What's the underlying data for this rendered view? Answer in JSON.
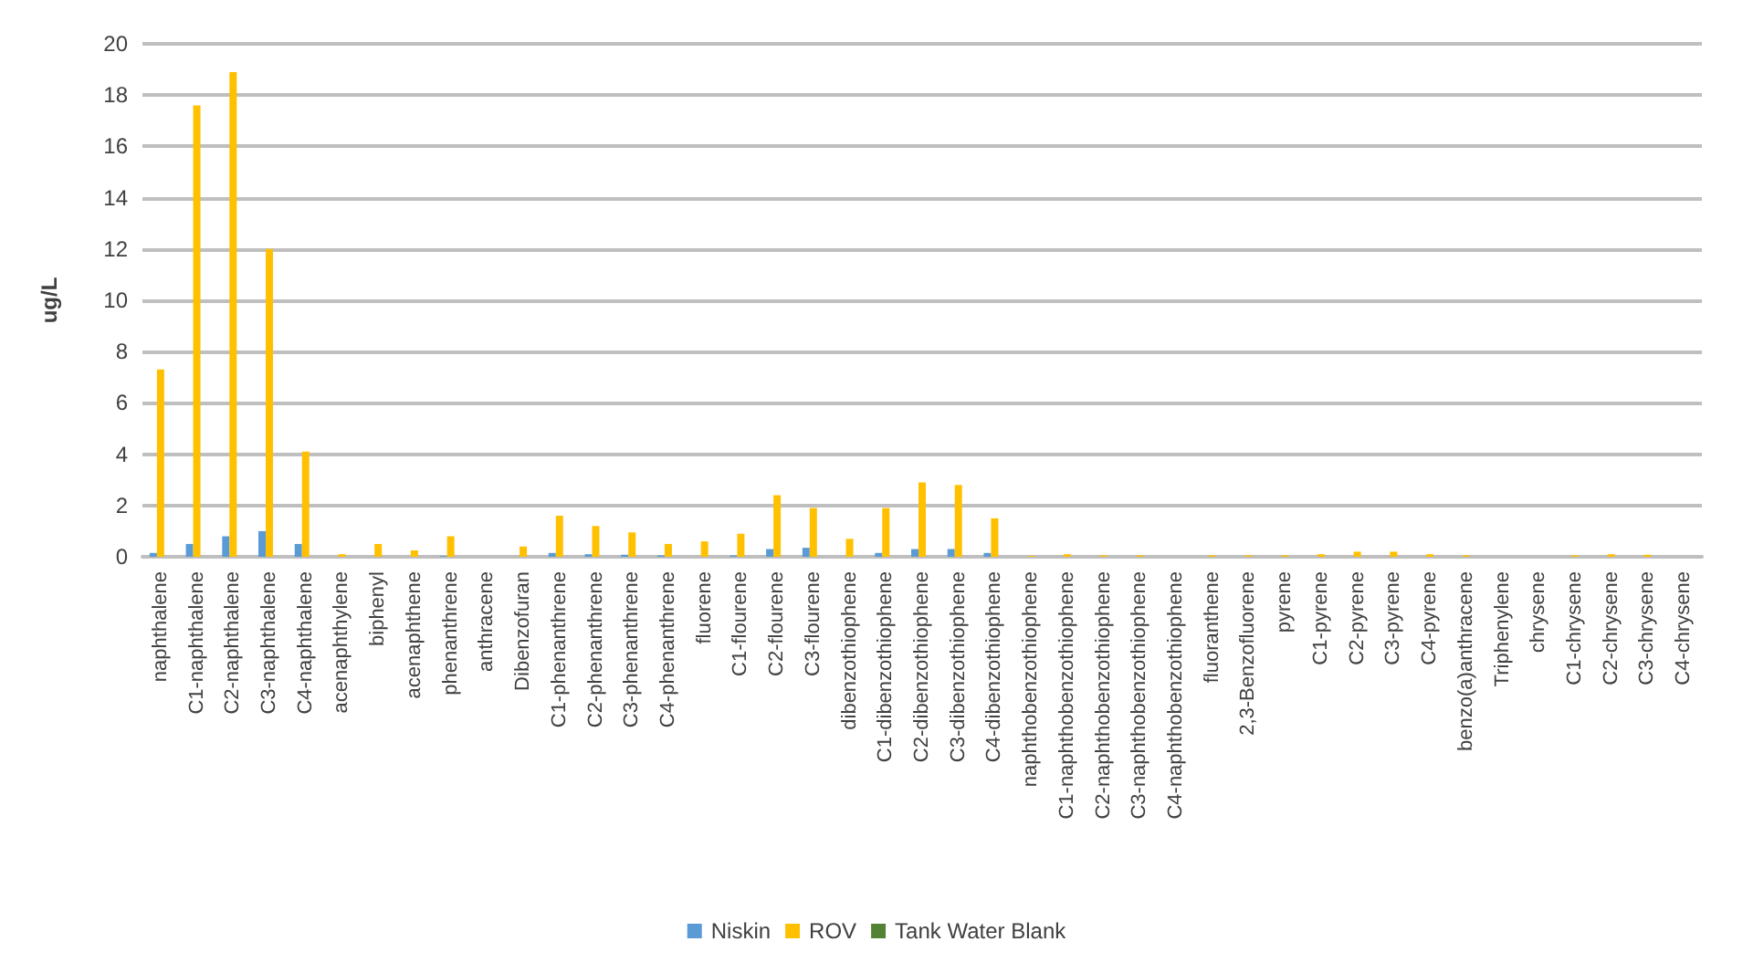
{
  "chart_data": {
    "type": "bar",
    "ylabel": "ug/L",
    "categories": [
      "naphthalene",
      "C1-naphthalene",
      "C2-naphthalene",
      "C3-naphthalene",
      "C4-naphthalene",
      "acenaphthylene",
      "biphenyl",
      "acenaphthene",
      "phenanthrene",
      "anthracene",
      "Dibenzofuran",
      "C1-phenanthrene",
      "C2-phenanthrene",
      "C3-phenanthrene",
      "C4-phenanthrene",
      "fluorene",
      "C1-flourene",
      "C2-flourene",
      "C3-flourene",
      "dibenzothiophene",
      "C1-dibenzothiophene",
      "C2-dibenzothiophene",
      "C3-dibenzothiophene",
      "C4-dibenzothiophene",
      "naphthobenzothiophene",
      "C1-naphthobenzothiophene",
      "C2-naphthobenzothiophene",
      "C3-naphthobenzothiophene",
      "C4-naphthobenzothiophene",
      "fluoranthene",
      "2,3-Benzofluorene",
      "pyrene",
      "C1-pyrene",
      "C2-pyrene",
      "C3-pyrene",
      "C4-pyrene",
      "benzo(a)anthracene",
      "Triphenylene",
      "chrysene",
      "C1-chrysene",
      "C2-chrysene",
      "C3-chrysene",
      "C4-chrysene"
    ],
    "series": [
      {
        "name": "Niskin",
        "color": "#5b9bd5",
        "values": [
          0.15,
          0.5,
          0.8,
          1.0,
          0.5,
          0,
          0,
          0,
          0.03,
          0,
          0,
          0.15,
          0.1,
          0.08,
          0.05,
          0,
          0.05,
          0.3,
          0.35,
          0,
          0.15,
          0.3,
          0.3,
          0.15,
          0,
          0,
          0,
          0,
          0,
          0,
          0,
          0,
          0,
          0,
          0,
          0,
          0,
          0,
          0,
          0,
          0,
          0,
          0
        ]
      },
      {
        "name": "ROV",
        "color": "#ffc000",
        "values": [
          7.3,
          17.6,
          18.9,
          12.0,
          4.1,
          0.1,
          0.5,
          0.25,
          0.8,
          0,
          0.4,
          1.6,
          1.2,
          0.95,
          0.5,
          0.6,
          0.9,
          2.4,
          1.9,
          0.7,
          1.9,
          2.9,
          2.8,
          1.5,
          0.03,
          0.1,
          0.05,
          0.05,
          0,
          0.05,
          0.05,
          0.05,
          0.1,
          0.2,
          0.2,
          0.1,
          0.05,
          0,
          0,
          0.05,
          0.1,
          0.08,
          0
        ]
      },
      {
        "name": "Tank Water Blank",
        "color": "#548235",
        "values": [
          0,
          0,
          0,
          0,
          0,
          0,
          0,
          0,
          0,
          0,
          0,
          0,
          0,
          0,
          0,
          0,
          0,
          0,
          0,
          0,
          0,
          0,
          0,
          0,
          0,
          0,
          0,
          0,
          0,
          0,
          0,
          0,
          0,
          0,
          0,
          0,
          0,
          0,
          0,
          0,
          0,
          0,
          0
        ]
      }
    ],
    "ylim": [
      0,
      20
    ],
    "yticks": [
      0,
      2,
      4,
      6,
      8,
      10,
      12,
      14,
      16,
      18,
      20
    ],
    "grid": "y",
    "legend": "bottom"
  }
}
